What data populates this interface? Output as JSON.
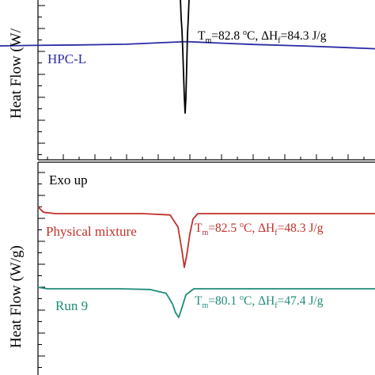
{
  "chart_data": [
    {
      "type": "line",
      "panel": "top",
      "ylabel": "Heat Flow (W/",
      "series": [
        {
          "name": "HPC-L",
          "color": "#2b2ba6",
          "label": "HPC-L",
          "x": [
            0,
            40,
            100,
            160,
            200,
            235,
            270,
            320,
            380,
            430,
            474
          ],
          "y": [
            -0.01,
            -0.008,
            -0.006,
            -0.003,
            0.003,
            0.008,
            0.003,
            -0.004,
            -0.01,
            -0.016,
            -0.022
          ]
        },
        {
          "name": "",
          "color": "#000000",
          "annotation": {
            "tm": "82.8",
            "dhf": "84.3"
          },
          "x": [
            228,
            229,
            230,
            231,
            232,
            233,
            234,
            235,
            236,
            237,
            238,
            239,
            240
          ],
          "y": [
            1.0,
            0.95,
            0.8,
            0.55,
            0.25,
            -0.05,
            -0.25,
            -0.05,
            0.35,
            0.75,
            0.95,
            1.0,
            1.0
          ]
        }
      ]
    },
    {
      "type": "line",
      "panel": "bottom",
      "ylabel": "Heat Flow (W/g)",
      "note": "Exo up",
      "series": [
        {
          "name": "Physical mixture",
          "color": "#c0312b",
          "label": "Physical mixture",
          "annotation": {
            "tm": "82.5",
            "dhf": "48.3"
          },
          "x": [
            48,
            55,
            70,
            120,
            180,
            215,
            225,
            230,
            233,
            236,
            240,
            244,
            250,
            300,
            400,
            474
          ],
          "y": [
            0.1,
            0.02,
            0.0,
            0.0,
            0.0,
            -0.02,
            -0.2,
            -0.55,
            -0.8,
            -0.62,
            -0.3,
            -0.08,
            0.0,
            0.0,
            0.0,
            0.0
          ]
        },
        {
          "name": "Run 9",
          "color": "#1f8b7a",
          "label": "Run 9",
          "annotation": {
            "tm": "80.1",
            "dhf": "47.4"
          },
          "x": [
            48,
            60,
            100,
            150,
            190,
            210,
            218,
            222,
            226,
            230,
            235,
            245,
            300,
            400,
            474
          ],
          "y": [
            0.02,
            0.0,
            0.0,
            0.0,
            -0.01,
            -0.06,
            -0.2,
            -0.32,
            -0.38,
            -0.25,
            -0.08,
            0.0,
            0.0,
            0.0,
            0.0
          ]
        }
      ]
    }
  ],
  "labels": {
    "top_ylabel": "Heat Flow (W/",
    "bottom_ylabel": "Heat Flow (W/g)",
    "exo": "Exo up",
    "hpc": "HPC-L",
    "pm": "Physical mixture",
    "run9": "Run 9",
    "tm": "T",
    "tm_sub": "m",
    "deg": "o",
    "dh": "ΔH",
    "dh_sub": "f",
    "unit": "J/g",
    "c": "C,",
    "tm1": "=82.8 ",
    "dh1": "=84.3 ",
    "tm2": "=82.5 ",
    "dh2": "=48.3 ",
    "tm3": "=80.1 ",
    "dh3": "=47.4 "
  }
}
